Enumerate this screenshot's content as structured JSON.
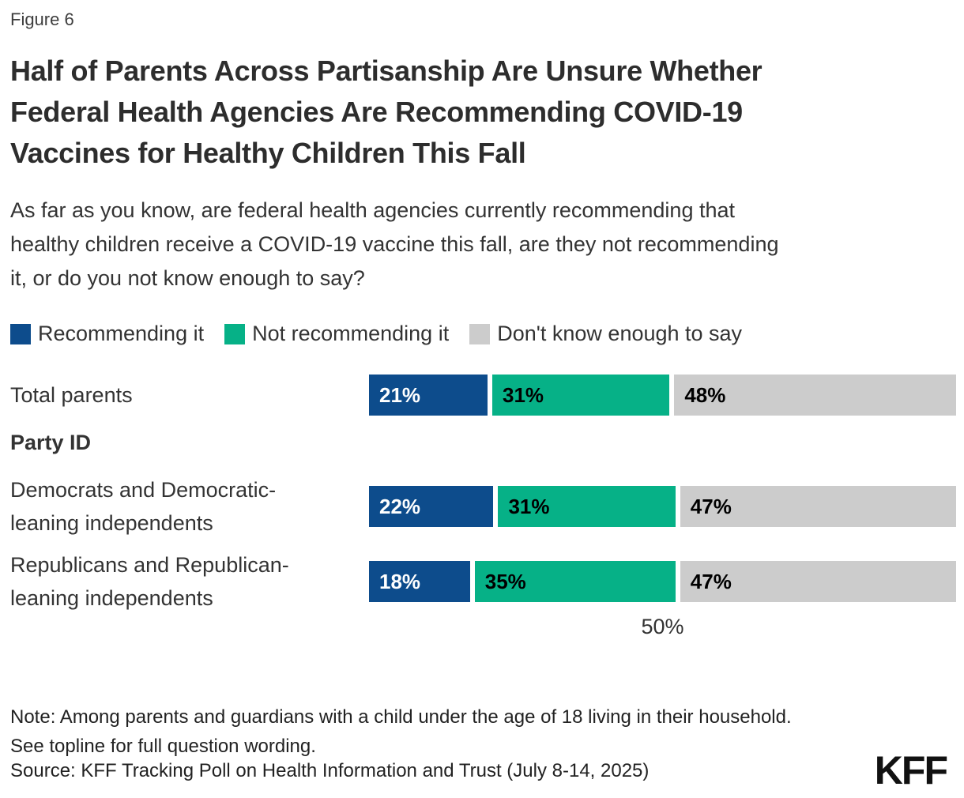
{
  "figure_label": "Figure 6",
  "title": "Half of Parents Across Partisanship Are Unsure Whether\nFederal Health Agencies Are Recommending COVID-19\nVaccines for Healthy Children This Fall",
  "subtitle": "As far as you know, are federal health agencies currently recommending that\nhealthy children receive a COVID-19 vaccine this fall, are they not recommending\nit, or do you not know enough to say?",
  "chart_data": {
    "type": "bar",
    "orientation": "horizontal",
    "stacked": true,
    "categories": [
      "Total parents",
      "Democrats and Democratic-\nleaning independents",
      "Republicans and Republican-\nleaning independents"
    ],
    "group_header": {
      "label": "Party ID",
      "before_index": 1
    },
    "series": [
      {
        "name": "Recommending it",
        "color": "#0D4C8C",
        "value_label_color": "#ffffff",
        "values": [
          21,
          22,
          18
        ]
      },
      {
        "name": "Not recommending it",
        "color": "#06B187",
        "value_label_color": "#000000",
        "values": [
          31,
          31,
          35
        ]
      },
      {
        "name": "Don't know enough to say",
        "color": "#CCCCCC",
        "value_label_color": "#000000",
        "values": [
          48,
          47,
          47
        ]
      }
    ],
    "value_suffix": "%",
    "axis": {
      "max": 100,
      "tick_value": 50,
      "tick_label": "50%"
    },
    "legend_position": "top",
    "grid": false
  },
  "note": "Note: Among parents and guardians with a child under the age of 18 living in their household.\nSee topline for full question wording.",
  "source": "Source: KFF Tracking Poll on Health Information and Trust (July 8-14, 2025)",
  "logo_text": "KFF"
}
